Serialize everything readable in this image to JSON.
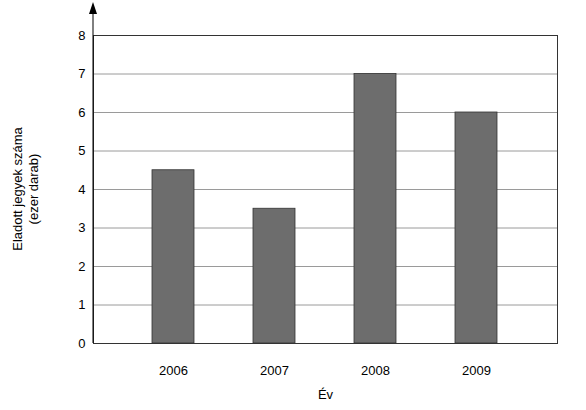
{
  "chart_data": {
    "type": "bar",
    "x_label": "Év",
    "y_label": "Eladott jegyek száma\n(ezer darab)",
    "categories": [
      "2006",
      "2007",
      "2008",
      "2009"
    ],
    "values": [
      4.5,
      3.5,
      7,
      6
    ],
    "color": "#6d6d6d",
    "ylim": [
      0,
      8
    ],
    "yticks": [
      0,
      1,
      2,
      3,
      4,
      5,
      6,
      7,
      8
    ],
    "grid": true
  }
}
